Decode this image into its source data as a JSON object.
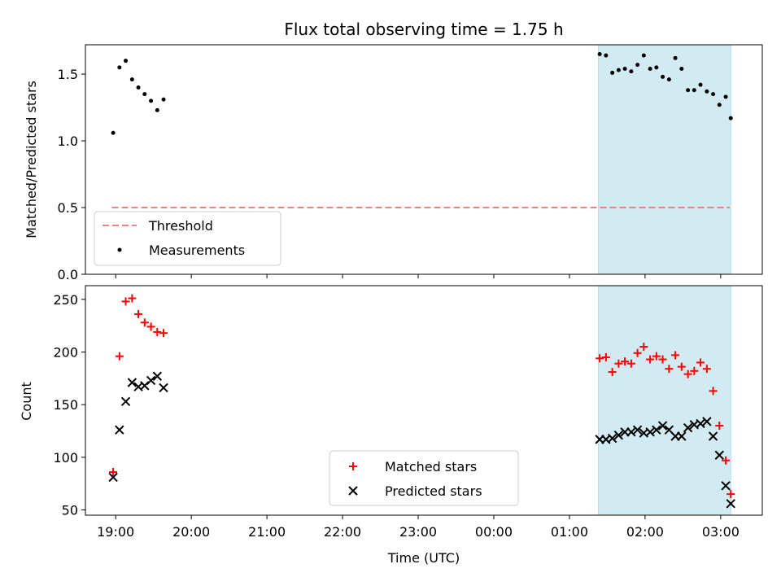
{
  "figure": {
    "title": "Flux total observing time = 1.75 h"
  },
  "chart_data": [
    {
      "type": "scatter",
      "panel": "top",
      "title": "Flux total observing time = 1.75 h",
      "xlabel": "",
      "ylabel": "Matched/Predicted stars",
      "x_unit": "hours (UTC), continuing past midnight (24 = 00:00, 27 = 03:00)",
      "xlim": [
        18.6,
        27.55
      ],
      "ylim": [
        0.0,
        1.72
      ],
      "yticks": [
        "0.0",
        "0.5",
        "1.0",
        "1.5"
      ],
      "grid": false,
      "legend_position": "lower-left",
      "shaded_region": {
        "x": [
          25.383,
          27.133
        ],
        "color": "#add8e6"
      },
      "threshold": {
        "name": "Threshold",
        "value": 0.5,
        "x": [
          18.95,
          27.12
        ],
        "color": "#f08080",
        "style": "dashed"
      },
      "series": [
        {
          "name": "Measurements",
          "color": "#000000",
          "marker": "dot",
          "points": [
            [
              18.967,
              1.06
            ],
            [
              19.05,
              1.55
            ],
            [
              19.133,
              1.6
            ],
            [
              19.217,
              1.46
            ],
            [
              19.3,
              1.4
            ],
            [
              19.383,
              1.35
            ],
            [
              19.467,
              1.3
            ],
            [
              19.55,
              1.23
            ],
            [
              19.633,
              1.31
            ],
            [
              25.4,
              1.65
            ],
            [
              25.483,
              1.64
            ],
            [
              25.567,
              1.51
            ],
            [
              25.65,
              1.53
            ],
            [
              25.733,
              1.54
            ],
            [
              25.817,
              1.52
            ],
            [
              25.9,
              1.57
            ],
            [
              25.983,
              1.64
            ],
            [
              26.067,
              1.54
            ],
            [
              26.15,
              1.55
            ],
            [
              26.233,
              1.48
            ],
            [
              26.317,
              1.46
            ],
            [
              26.4,
              1.62
            ],
            [
              26.483,
              1.54
            ],
            [
              26.567,
              1.38
            ],
            [
              26.65,
              1.38
            ],
            [
              26.733,
              1.42
            ],
            [
              26.817,
              1.37
            ],
            [
              26.9,
              1.35
            ],
            [
              26.983,
              1.27
            ],
            [
              27.067,
              1.33
            ],
            [
              27.133,
              1.17
            ]
          ]
        }
      ]
    },
    {
      "type": "scatter",
      "panel": "bottom",
      "title": "",
      "xlabel": "Time (UTC)",
      "ylabel": "Count",
      "x_unit": "hours (UTC), continuing past midnight (24 = 00:00, 27 = 03:00)",
      "xlim": [
        18.6,
        27.55
      ],
      "ylim": [
        45,
        263
      ],
      "yticks": [
        "50",
        "100",
        "150",
        "200",
        "250"
      ],
      "xticks": [
        "19:00",
        "20:00",
        "21:00",
        "22:00",
        "23:00",
        "00:00",
        "01:00",
        "02:00",
        "03:00"
      ],
      "grid": false,
      "legend_position": "lower-center",
      "shaded_region": {
        "x": [
          25.383,
          27.133
        ],
        "color": "#add8e6"
      },
      "series": [
        {
          "name": "Matched stars",
          "color": "#ff0000",
          "marker": "plus",
          "points": [
            [
              18.967,
              86
            ],
            [
              19.05,
              196
            ],
            [
              19.133,
              248
            ],
            [
              19.217,
              251
            ],
            [
              19.3,
              236
            ],
            [
              19.383,
              228
            ],
            [
              19.467,
              224
            ],
            [
              19.55,
              219
            ],
            [
              19.633,
              218
            ],
            [
              25.4,
              194
            ],
            [
              25.483,
              195
            ],
            [
              25.567,
              181
            ],
            [
              25.65,
              189
            ],
            [
              25.733,
              191
            ],
            [
              25.817,
              189
            ],
            [
              25.9,
              199
            ],
            [
              25.983,
              205
            ],
            [
              26.067,
              193
            ],
            [
              26.15,
              196
            ],
            [
              26.233,
              193
            ],
            [
              26.317,
              184
            ],
            [
              26.4,
              197
            ],
            [
              26.483,
              186
            ],
            [
              26.567,
              179
            ],
            [
              26.65,
              182
            ],
            [
              26.733,
              190
            ],
            [
              26.817,
              184
            ],
            [
              26.9,
              163
            ],
            [
              26.983,
              130
            ],
            [
              27.067,
              97
            ],
            [
              27.133,
              65
            ]
          ]
        },
        {
          "name": "Predicted stars",
          "color": "#000000",
          "marker": "x",
          "points": [
            [
              18.967,
              81
            ],
            [
              19.05,
              126
            ],
            [
              19.133,
              153
            ],
            [
              19.217,
              171
            ],
            [
              19.3,
              167
            ],
            [
              19.383,
              168
            ],
            [
              19.467,
              173
            ],
            [
              19.55,
              177
            ],
            [
              19.633,
              166
            ],
            [
              25.4,
              117
            ],
            [
              25.483,
              117
            ],
            [
              25.567,
              118
            ],
            [
              25.65,
              121
            ],
            [
              25.733,
              124
            ],
            [
              25.817,
              124
            ],
            [
              25.9,
              126
            ],
            [
              25.983,
              123
            ],
            [
              26.067,
              124
            ],
            [
              26.15,
              126
            ],
            [
              26.233,
              130
            ],
            [
              26.317,
              126
            ],
            [
              26.4,
              120
            ],
            [
              26.483,
              120
            ],
            [
              26.567,
              128
            ],
            [
              26.65,
              131
            ],
            [
              26.733,
              132
            ],
            [
              26.817,
              134
            ],
            [
              26.9,
              120
            ],
            [
              26.983,
              102
            ],
            [
              27.067,
              73
            ],
            [
              27.133,
              56
            ]
          ]
        }
      ]
    }
  ]
}
